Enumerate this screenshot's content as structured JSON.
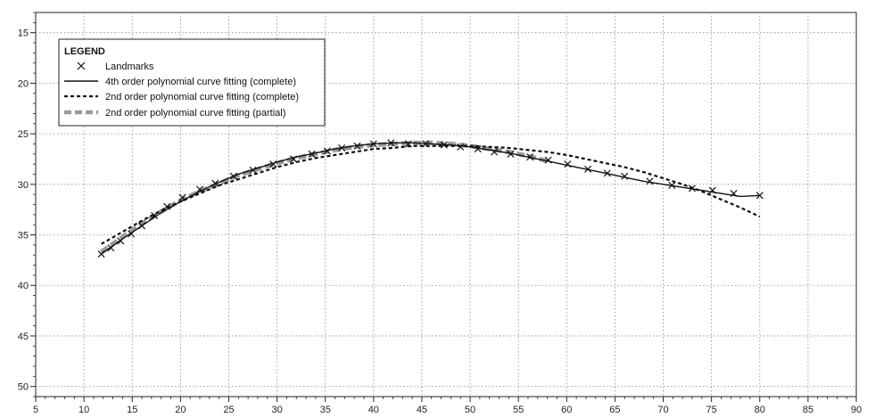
{
  "chart_data": {
    "type": "line",
    "title": "",
    "xlabel": "",
    "ylabel": "",
    "xlim": [
      5,
      90
    ],
    "ylim": [
      13,
      51
    ],
    "y_inverted": true,
    "grid": true,
    "legend_position": "top-left",
    "xticks": [
      5,
      10,
      15,
      20,
      25,
      30,
      35,
      40,
      45,
      50,
      55,
      60,
      65,
      70,
      75,
      80,
      85,
      90
    ],
    "yticks": [
      15,
      20,
      25,
      30,
      35,
      40,
      45,
      50
    ],
    "legend": {
      "title": "LEGEND",
      "entries": [
        "Landmarks",
        "4th order polynomial curve fitting (complete)",
        "2nd order polynomial curve fitting (complete)",
        "2nd order polynomial curve fitting (partial)"
      ]
    },
    "landmarks": {
      "x": [
        11.8,
        12.8,
        13.8,
        14.9,
        16.0,
        17.3,
        18.6,
        20.2,
        22.0,
        23.6,
        25.5,
        27.5,
        29.6,
        31.7,
        33.6,
        35.2,
        36.7,
        38.3,
        40.0,
        41.8,
        43.6,
        45.4,
        47.3,
        49.0,
        50.8,
        52.5,
        54.2,
        56.2,
        58.1,
        60.1,
        62.2,
        64.2,
        66.0,
        68.6,
        70.9,
        73.0,
        75.1,
        77.3,
        80.0
      ],
      "y": [
        36.9,
        36.3,
        35.6,
        34.9,
        34.1,
        33.1,
        32.2,
        31.3,
        30.5,
        29.9,
        29.2,
        28.6,
        28.0,
        27.5,
        27.0,
        26.7,
        26.4,
        26.2,
        26.0,
        25.9,
        26.0,
        26.0,
        26.1,
        26.3,
        26.5,
        26.8,
        27.0,
        27.3,
        27.6,
        28.0,
        28.5,
        28.9,
        29.2,
        29.7,
        30.1,
        30.4,
        30.6,
        30.9,
        31.1
      ]
    },
    "series": [
      {
        "name": "4th order polynomial curve fitting (complete)",
        "color": "#111111",
        "x": [
          11.8,
          14,
          16,
          18,
          20,
          22,
          24,
          26,
          28,
          30,
          32,
          34,
          36,
          38,
          40,
          42,
          44,
          46,
          48,
          50,
          52,
          54,
          56,
          58,
          60,
          62,
          64,
          66,
          68,
          70,
          72,
          74,
          76,
          78,
          80
        ],
        "y": [
          36.9,
          35.4,
          34.1,
          32.8,
          31.7,
          30.7,
          29.8,
          29.0,
          28.4,
          27.8,
          27.3,
          26.9,
          26.5,
          26.2,
          26.0,
          25.9,
          25.9,
          26.0,
          26.1,
          26.3,
          26.6,
          26.9,
          27.3,
          27.7,
          28.1,
          28.5,
          28.9,
          29.3,
          29.7,
          30.0,
          30.3,
          30.6,
          30.9,
          31.2,
          31.1
        ]
      },
      {
        "name": "2nd order polynomial curve fitting (complete)",
        "color": "#111111",
        "x": [
          11.8,
          14,
          16,
          18,
          20,
          22,
          24,
          26,
          28,
          30,
          32,
          34,
          36,
          38,
          40,
          42,
          44,
          46,
          48,
          50,
          52,
          54,
          56,
          58,
          60,
          62,
          64,
          66,
          68,
          70,
          72,
          74,
          76,
          78,
          80
        ],
        "y": [
          35.9,
          34.7,
          33.6,
          32.6,
          31.7,
          30.9,
          30.1,
          29.5,
          28.9,
          28.3,
          27.8,
          27.4,
          27.1,
          26.8,
          26.5,
          26.4,
          26.2,
          26.2,
          26.2,
          26.2,
          26.3,
          26.4,
          26.6,
          26.8,
          27.1,
          27.5,
          27.9,
          28.3,
          28.8,
          29.4,
          30.0,
          30.7,
          31.5,
          32.3,
          33.2
        ]
      },
      {
        "name": "2nd order polynomial curve fitting (partial)",
        "color": "#9a9a9a",
        "x": [
          11.8,
          14,
          16,
          18,
          20,
          22,
          24,
          26,
          28,
          30,
          32,
          34,
          36,
          38,
          40,
          42,
          44,
          46,
          48,
          50,
          52,
          54,
          56,
          58
        ],
        "y": [
          36.7,
          35.2,
          33.9,
          32.7,
          31.6,
          30.7,
          29.9,
          29.1,
          28.5,
          27.9,
          27.4,
          27.0,
          26.6,
          26.3,
          26.1,
          26.0,
          25.9,
          25.9,
          26.0,
          26.2,
          26.5,
          26.8,
          27.2,
          27.7
        ]
      }
    ]
  }
}
